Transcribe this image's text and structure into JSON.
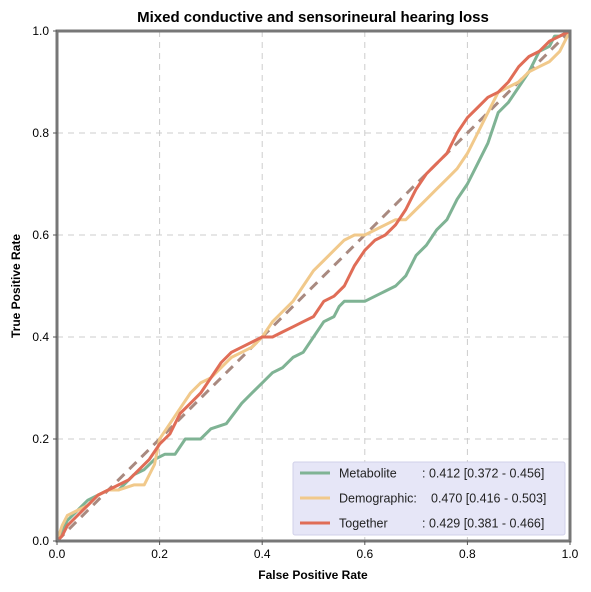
{
  "chart_data": {
    "type": "line",
    "title": "Mixed conductive and sensorineural hearing loss",
    "xlabel": "False Positive Rate",
    "ylabel": "True Positive Rate",
    "xlim": [
      0,
      1
    ],
    "ylim": [
      0,
      1
    ],
    "xticks": [
      "0.0",
      "0.2",
      "0.4",
      "0.6",
      "0.8",
      "1.0"
    ],
    "yticks": [
      "0.0",
      "0.2",
      "0.4",
      "0.6",
      "0.8",
      "1.0"
    ],
    "grid": true,
    "legend_position": "bottom-right",
    "diagonal": {
      "color": "#a98a80",
      "style": "dashed"
    },
    "series": [
      {
        "name": "Metabolite",
        "label_name": "Metabolite",
        "label_value": ": 0.412 [0.372 - 0.456]",
        "color": "#7fb394",
        "x": [
          0.0,
          0.01,
          0.02,
          0.04,
          0.06,
          0.08,
          0.1,
          0.12,
          0.15,
          0.17,
          0.19,
          0.21,
          0.23,
          0.25,
          0.28,
          0.3,
          0.33,
          0.36,
          0.38,
          0.4,
          0.42,
          0.44,
          0.46,
          0.48,
          0.5,
          0.52,
          0.54,
          0.55,
          0.56,
          0.58,
          0.6,
          0.62,
          0.64,
          0.66,
          0.68,
          0.7,
          0.72,
          0.74,
          0.76,
          0.78,
          0.8,
          0.82,
          0.84,
          0.86,
          0.88,
          0.9,
          0.92,
          0.94,
          0.96,
          0.97,
          0.98,
          1.0
        ],
        "y": [
          0.0,
          0.02,
          0.04,
          0.06,
          0.08,
          0.09,
          0.1,
          0.1,
          0.13,
          0.14,
          0.16,
          0.17,
          0.17,
          0.2,
          0.2,
          0.22,
          0.23,
          0.27,
          0.29,
          0.31,
          0.33,
          0.34,
          0.36,
          0.37,
          0.4,
          0.43,
          0.44,
          0.46,
          0.47,
          0.47,
          0.47,
          0.48,
          0.49,
          0.5,
          0.52,
          0.56,
          0.58,
          0.61,
          0.63,
          0.67,
          0.7,
          0.74,
          0.78,
          0.84,
          0.86,
          0.89,
          0.92,
          0.96,
          0.97,
          0.99,
          0.99,
          1.0
        ]
      },
      {
        "name": "Demographic",
        "label_name": "Demographic:",
        "label_value": "0.470 [0.416 - 0.503]",
        "color": "#f1c98b",
        "x": [
          0.0,
          0.01,
          0.02,
          0.04,
          0.06,
          0.08,
          0.1,
          0.12,
          0.15,
          0.17,
          0.19,
          0.2,
          0.22,
          0.24,
          0.26,
          0.28,
          0.3,
          0.32,
          0.34,
          0.36,
          0.38,
          0.4,
          0.42,
          0.44,
          0.46,
          0.48,
          0.5,
          0.52,
          0.54,
          0.56,
          0.58,
          0.6,
          0.62,
          0.64,
          0.66,
          0.68,
          0.7,
          0.72,
          0.74,
          0.76,
          0.78,
          0.8,
          0.82,
          0.84,
          0.86,
          0.88,
          0.9,
          0.92,
          0.94,
          0.96,
          0.98,
          1.0
        ],
        "y": [
          0.0,
          0.03,
          0.05,
          0.06,
          0.07,
          0.09,
          0.1,
          0.1,
          0.11,
          0.11,
          0.15,
          0.2,
          0.23,
          0.26,
          0.29,
          0.31,
          0.32,
          0.34,
          0.36,
          0.37,
          0.38,
          0.4,
          0.43,
          0.45,
          0.47,
          0.5,
          0.53,
          0.55,
          0.57,
          0.59,
          0.6,
          0.6,
          0.61,
          0.62,
          0.63,
          0.63,
          0.65,
          0.67,
          0.69,
          0.71,
          0.73,
          0.76,
          0.8,
          0.84,
          0.88,
          0.89,
          0.9,
          0.92,
          0.93,
          0.94,
          0.96,
          1.0
        ]
      },
      {
        "name": "Together",
        "label_name": "Together",
        "label_value": ": 0.429 [0.381 - 0.466]",
        "color": "#e06d57",
        "x": [
          0.0,
          0.01,
          0.02,
          0.04,
          0.06,
          0.08,
          0.1,
          0.12,
          0.14,
          0.16,
          0.18,
          0.2,
          0.22,
          0.24,
          0.26,
          0.28,
          0.3,
          0.32,
          0.34,
          0.36,
          0.38,
          0.4,
          0.42,
          0.44,
          0.46,
          0.48,
          0.5,
          0.52,
          0.54,
          0.56,
          0.58,
          0.6,
          0.62,
          0.64,
          0.66,
          0.68,
          0.7,
          0.72,
          0.74,
          0.76,
          0.78,
          0.8,
          0.82,
          0.84,
          0.86,
          0.88,
          0.9,
          0.92,
          0.94,
          0.96,
          0.98,
          1.0
        ],
        "y": [
          0.0,
          0.01,
          0.03,
          0.05,
          0.07,
          0.09,
          0.1,
          0.11,
          0.12,
          0.14,
          0.16,
          0.19,
          0.21,
          0.25,
          0.27,
          0.29,
          0.32,
          0.35,
          0.37,
          0.38,
          0.39,
          0.4,
          0.4,
          0.41,
          0.42,
          0.43,
          0.44,
          0.47,
          0.48,
          0.5,
          0.54,
          0.57,
          0.59,
          0.6,
          0.62,
          0.65,
          0.69,
          0.72,
          0.74,
          0.76,
          0.8,
          0.83,
          0.85,
          0.87,
          0.88,
          0.9,
          0.93,
          0.95,
          0.96,
          0.98,
          0.99,
          1.0
        ]
      }
    ]
  }
}
